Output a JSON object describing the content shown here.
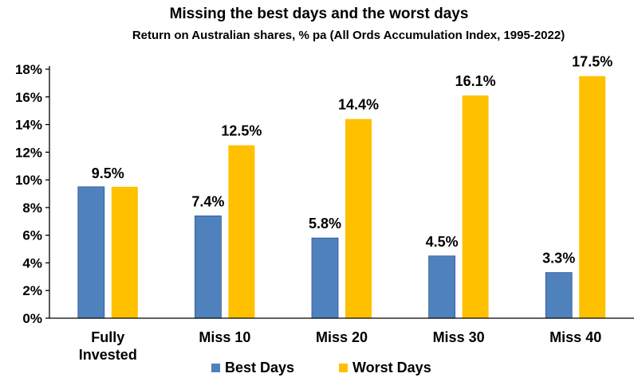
{
  "chart_data": {
    "type": "bar",
    "title": "Missing the best days and the worst days",
    "subtitle": "Return on Australian shares, % pa (All Ords Accumulation Index, 1995-2022)",
    "xlabel": "",
    "ylabel": "",
    "categories": [
      [
        "Fully",
        "Invested"
      ],
      [
        "Miss 10"
      ],
      [
        "Miss 20"
      ],
      [
        "Miss 30"
      ],
      [
        "Miss 40"
      ]
    ],
    "ylim": [
      0,
      18
    ],
    "yticks": [
      0,
      2,
      4,
      6,
      8,
      10,
      12,
      14,
      16,
      18
    ],
    "ytick_labels": [
      "0%",
      "2%",
      "4%",
      "6%",
      "8%",
      "10%",
      "12%",
      "14%",
      "16%",
      "18%"
    ],
    "grid": false,
    "legend_position": "bottom",
    "series": [
      {
        "name": "Best Days",
        "color": "#4F81BD",
        "values": [
          9.5,
          7.4,
          5.8,
          4.5,
          3.3
        ],
        "labels": [
          "",
          "7.4%",
          "5.8%",
          "4.5%",
          "3.3%"
        ]
      },
      {
        "name": "Worst Days",
        "color": "#FFC000",
        "values": [
          9.5,
          12.5,
          14.4,
          16.1,
          17.5
        ],
        "labels": [
          "",
          "12.5%",
          "14.4%",
          "16.1%",
          "17.5%"
        ]
      }
    ],
    "shared_labels": [
      "9.5%",
      "",
      "",
      "",
      ""
    ]
  }
}
